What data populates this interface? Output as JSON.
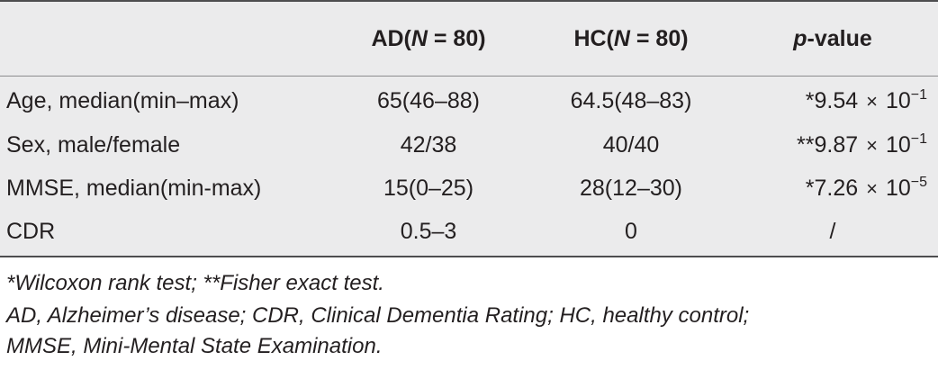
{
  "table": {
    "headers": {
      "col1": "",
      "col2_pre": "AD(",
      "col2_n": "N",
      "col2_post": " = 80)",
      "col3_pre": "HC(",
      "col3_n": "N",
      "col3_post": " = 80)",
      "col4_p": "p",
      "col4_post": "-value"
    },
    "rows": [
      {
        "label": "Age, median(min–max)",
        "ad": "65(46–88)",
        "hc": "64.5(48–83)",
        "p_prefix": "*",
        "p_mantissa": "9.54",
        "p_times": "×",
        "p_base": "10",
        "p_exp": "−1"
      },
      {
        "label": "Sex, male/female",
        "ad": "42/38",
        "hc": "40/40",
        "p_prefix": "**",
        "p_mantissa": "9.87",
        "p_times": "×",
        "p_base": "10",
        "p_exp": "−1"
      },
      {
        "label": "MMSE, median(min-max)",
        "ad": "15(0–25)",
        "hc": "28(12–30)",
        "p_prefix": "*",
        "p_mantissa": "7.26",
        "p_times": "×",
        "p_base": "10",
        "p_exp": "−5"
      },
      {
        "label": "CDR",
        "ad": "0.5–3",
        "hc": "0",
        "p_value": "/"
      }
    ]
  },
  "footnotes": {
    "line1": "*Wilcoxon rank test; **Fisher exact test.",
    "line2": "AD, Alzheimer’s disease; CDR, Clinical Dementia Rating; HC, healthy control;",
    "line3": "MMSE, Mini-Mental State Examination."
  }
}
